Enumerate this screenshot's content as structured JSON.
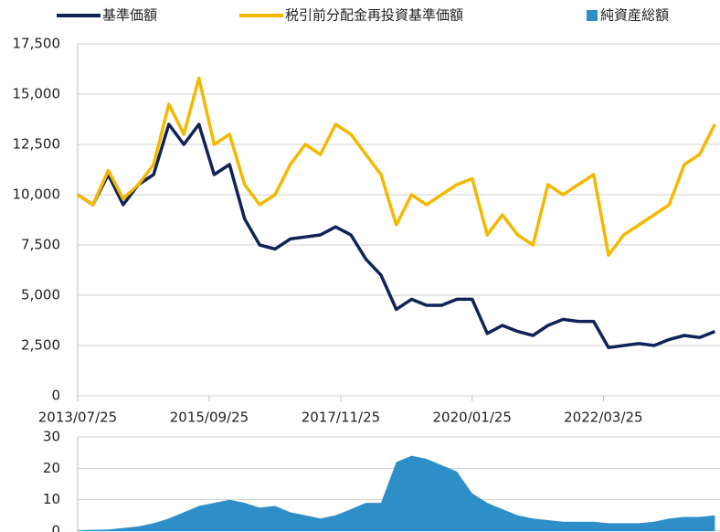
{
  "chart_data": [
    {
      "type": "line",
      "x": [
        "2013/07/25",
        "2013/10/25",
        "2014/01/25",
        "2014/04/25",
        "2014/07/25",
        "2014/10/25",
        "2015/01/25",
        "2015/04/25",
        "2015/07/25",
        "2015/10/25",
        "2016/01/25",
        "2016/04/25",
        "2016/07/25",
        "2016/10/25",
        "2017/01/25",
        "2017/04/25",
        "2017/07/25",
        "2017/10/25",
        "2018/01/25",
        "2018/04/25",
        "2018/07/25",
        "2018/10/25",
        "2019/01/25",
        "2019/04/25",
        "2019/07/25",
        "2019/10/25",
        "2020/01/25",
        "2020/04/25",
        "2020/07/25",
        "2020/10/25",
        "2021/01/25",
        "2021/04/25",
        "2021/07/25",
        "2021/10/25",
        "2022/01/25",
        "2022/04/25",
        "2022/07/25",
        "2022/10/25",
        "2023/01/25",
        "2023/04/25",
        "2023/07/25",
        "2023/10/25",
        "2024/01/25"
      ],
      "series": [
        {
          "name": "基準価額",
          "color": "#0f2357",
          "values": [
            10000,
            9500,
            11000,
            9500,
            10500,
            11000,
            13500,
            12500,
            13500,
            11000,
            11500,
            8800,
            7500,
            7300,
            7800,
            7900,
            8000,
            8400,
            8000,
            6800,
            6000,
            4300,
            4800,
            4500,
            4500,
            4800,
            4800,
            3100,
            3500,
            3200,
            3000,
            3500,
            3800,
            3700,
            3700,
            2400,
            2500,
            2600,
            2500,
            2800,
            3000,
            2900,
            3200
          ]
        },
        {
          "name": "税引前分配金再投資基準価額",
          "color": "#f5b800",
          "values": [
            10000,
            9500,
            11200,
            9800,
            10500,
            11500,
            14500,
            13000,
            15800,
            12500,
            13000,
            10500,
            9500,
            10000,
            11500,
            12500,
            12000,
            13500,
            13000,
            12000,
            11000,
            8500,
            10000,
            9500,
            10000,
            10500,
            10800,
            8000,
            9000,
            8000,
            7500,
            10500,
            10000,
            10500,
            11000,
            7000,
            8000,
            8500,
            9000,
            9500,
            11500,
            12000,
            13500
          ]
        }
      ],
      "xlim": [
        "2013/07/25",
        "2024/02/25"
      ],
      "xticks": [
        "2013/07/25",
        "2015/09/25",
        "2017/11/25",
        "2020/01/25",
        "2022/03/25"
      ],
      "ylim": [
        0,
        17500
      ],
      "yticks": [
        0,
        {
          "value": 2500,
          "label": "2,500"
        },
        {
          "value": 5000,
          "label": "5,000"
        },
        {
          "value": 7500,
          "label": "7,500"
        },
        {
          "value": 10000,
          "label": "10,000"
        },
        {
          "value": 12500,
          "label": "12,500"
        },
        {
          "value": 15000,
          "label": "15,000"
        },
        {
          "value": 17500,
          "label": "17,500"
        }
      ],
      "grid": true
    },
    {
      "type": "area",
      "x": [
        "2013/07/25",
        "2013/10/25",
        "2014/01/25",
        "2014/04/25",
        "2014/07/25",
        "2014/10/25",
        "2015/01/25",
        "2015/04/25",
        "2015/07/25",
        "2015/10/25",
        "2016/01/25",
        "2016/04/25",
        "2016/07/25",
        "2016/10/25",
        "2017/01/25",
        "2017/04/25",
        "2017/07/25",
        "2017/10/25",
        "2018/01/25",
        "2018/04/25",
        "2018/07/25",
        "2018/10/25",
        "2019/01/25",
        "2019/04/25",
        "2019/07/25",
        "2019/10/25",
        "2020/01/25",
        "2020/04/25",
        "2020/07/25",
        "2020/10/25",
        "2021/01/25",
        "2021/04/25",
        "2021/07/25",
        "2021/10/25",
        "2022/01/25",
        "2022/04/25",
        "2022/07/25",
        "2022/10/25",
        "2023/01/25",
        "2023/04/25",
        "2023/07/25",
        "2023/10/25",
        "2024/01/25"
      ],
      "series": [
        {
          "name": "純資産総額",
          "color": "#2e8fc8",
          "values": [
            0.2,
            0.4,
            0.5,
            1,
            1.5,
            2.5,
            4,
            6,
            8,
            9,
            10,
            9,
            7.5,
            8,
            6,
            5,
            4,
            5,
            7,
            9,
            9,
            22,
            24,
            23,
            21,
            19,
            12,
            9,
            7,
            5,
            4,
            3.5,
            3,
            3,
            3,
            2.5,
            2.5,
            2.5,
            3,
            4,
            4.5,
            4.5,
            5
          ]
        }
      ],
      "xlim": [
        "2013/07/25",
        "2024/02/25"
      ],
      "ylim": [
        0,
        30
      ],
      "yticks": [
        0,
        10,
        20,
        30
      ],
      "grid": true
    }
  ]
}
